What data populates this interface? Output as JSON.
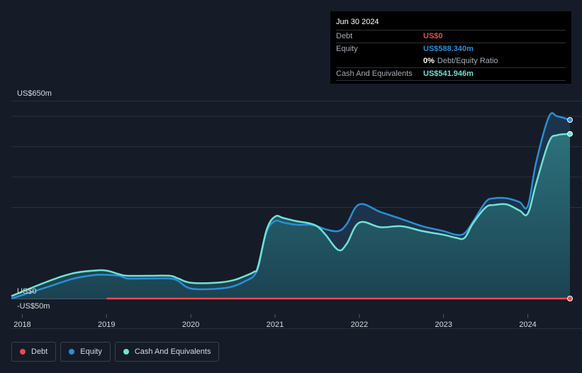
{
  "tooltip": {
    "date": "Jun 30 2024",
    "debt_label": "Debt",
    "debt_value": "US$0",
    "equity_label": "Equity",
    "equity_value": "US$588.340m",
    "ratio_value": "0%",
    "ratio_label": "Debt/Equity Ratio",
    "cash_label": "Cash And Equivalents",
    "cash_value": "US$541.946m"
  },
  "legend": {
    "debt": "Debt",
    "equity": "Equity",
    "cash": "Cash And Equivalents"
  },
  "colors": {
    "debt": "#e84a55",
    "equity": "#2c8ed6",
    "cash": "#6fe3d4",
    "background": "#151c27"
  },
  "chart_data": {
    "type": "area",
    "y_unit": "US$ m",
    "ylim": [
      -50,
      650
    ],
    "y_tick_labels": [
      {
        "value": 650,
        "label": "US$650m"
      },
      {
        "value": 0,
        "label": "US$0"
      },
      {
        "value": -50,
        "label": "-US$50m"
      }
    ],
    "x_range": [
      2017.87,
      2024.5
    ],
    "x_tick_labels": [
      "2018",
      "2019",
      "2020",
      "2021",
      "2022",
      "2023",
      "2024"
    ],
    "grid": true,
    "series": [
      {
        "name": "Debt",
        "x": [
          2019.0,
          2024.5
        ],
        "y": [
          0,
          0
        ]
      },
      {
        "name": "Equity",
        "x": [
          2017.87,
          2018.3,
          2018.6,
          2018.85,
          2019.0,
          2019.15,
          2019.25,
          2019.5,
          2019.75,
          2019.85,
          2020.0,
          2020.3,
          2020.5,
          2020.65,
          2020.75,
          2020.8,
          2020.9,
          2021.0,
          2021.1,
          2021.25,
          2021.4,
          2021.5,
          2021.6,
          2021.75,
          2021.85,
          2022.0,
          2022.25,
          2022.5,
          2022.75,
          2023.0,
          2023.15,
          2023.25,
          2023.35,
          2023.5,
          2023.6,
          2023.75,
          2023.9,
          2024.0,
          2024.1,
          2024.25,
          2024.35,
          2024.5
        ],
        "y": [
          0,
          38,
          65,
          77,
          78,
          75,
          66,
          66,
          66,
          58,
          33,
          32,
          40,
          58,
          75,
          110,
          220,
          255,
          250,
          243,
          243,
          238,
          228,
          222,
          245,
          310,
          285,
          262,
          238,
          222,
          210,
          215,
          253,
          318,
          330,
          330,
          318,
          305,
          450,
          598,
          600,
          588
        ]
      },
      {
        "name": "Cash And Equivalents",
        "x": [
          2017.87,
          2018.3,
          2018.6,
          2018.85,
          2019.0,
          2019.15,
          2019.25,
          2019.5,
          2019.75,
          2019.85,
          2020.0,
          2020.3,
          2020.5,
          2020.65,
          2020.75,
          2020.8,
          2020.9,
          2021.0,
          2021.1,
          2021.25,
          2021.4,
          2021.5,
          2021.6,
          2021.75,
          2021.85,
          2022.0,
          2022.25,
          2022.5,
          2022.75,
          2023.0,
          2023.15,
          2023.25,
          2023.35,
          2023.5,
          2023.6,
          2023.75,
          2023.9,
          2024.0,
          2024.1,
          2024.25,
          2024.35,
          2024.5
        ],
        "y": [
          8,
          56,
          83,
          92,
          92,
          80,
          75,
          75,
          75,
          66,
          52,
          52,
          60,
          75,
          88,
          105,
          226,
          270,
          265,
          255,
          248,
          238,
          210,
          160,
          180,
          250,
          235,
          238,
          222,
          210,
          200,
          200,
          248,
          300,
          308,
          310,
          290,
          280,
          380,
          515,
          538,
          542
        ]
      }
    ]
  }
}
